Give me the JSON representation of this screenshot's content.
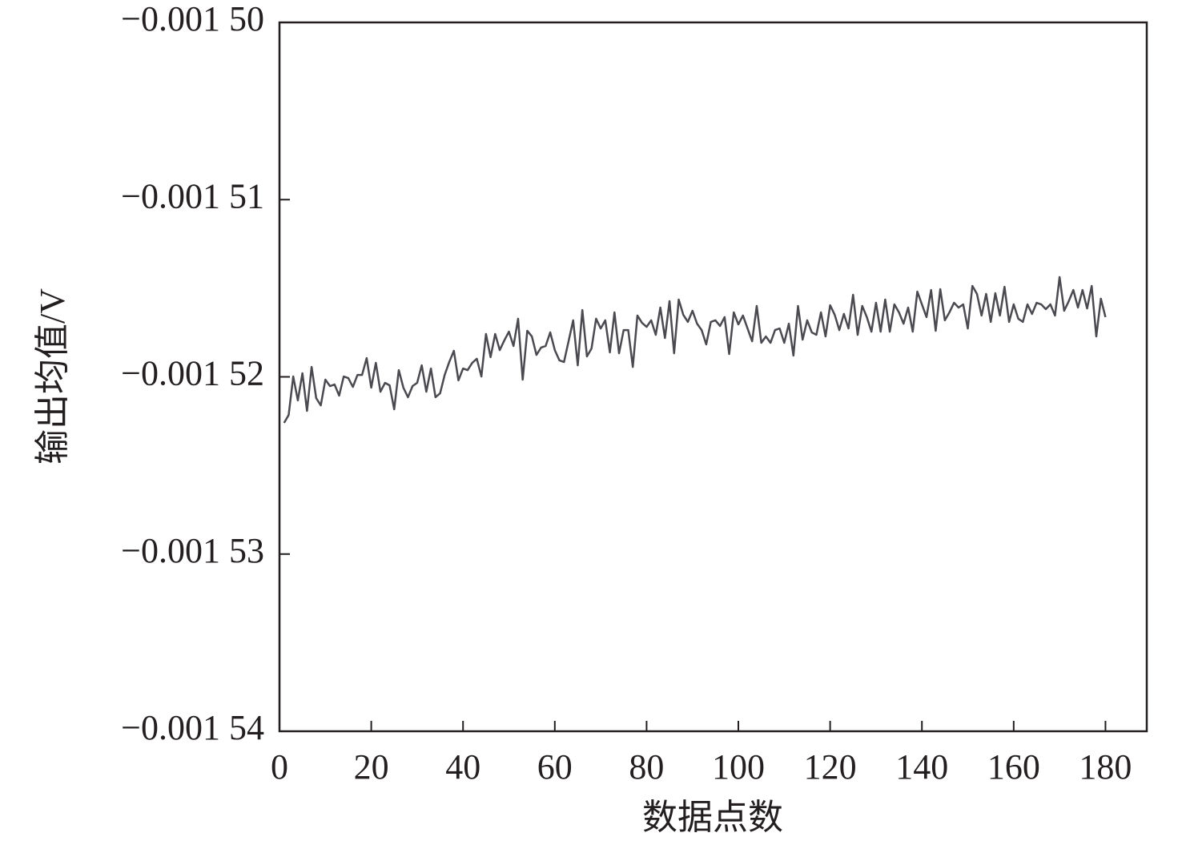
{
  "chart_data": {
    "type": "line",
    "x_label": "数据点数",
    "y_label": "输出均值/V",
    "color": "#4a4a50",
    "xlim": [
      0,
      189
    ],
    "xticks": [
      0,
      20,
      40,
      60,
      80,
      100,
      120,
      140,
      160,
      180
    ],
    "ylim": [
      -0.00154,
      -0.0015
    ],
    "yticks": [
      {
        "value": -0.0015,
        "label": "−0.001 50"
      },
      {
        "value": -0.00151,
        "label": "−0.001 51"
      },
      {
        "value": -0.00152,
        "label": "−0.001 52"
      },
      {
        "value": -0.00153,
        "label": "−0.001 53"
      },
      {
        "value": -0.00154,
        "label": "−0.001 54"
      }
    ],
    "x": [
      1,
      2,
      3,
      4,
      5,
      6,
      7,
      8,
      9,
      10,
      11,
      12,
      13,
      14,
      15,
      16,
      17,
      18,
      19,
      20,
      21,
      22,
      23,
      24,
      25,
      26,
      27,
      28,
      29,
      30,
      31,
      32,
      33,
      34,
      35,
      36,
      37,
      38,
      39,
      40,
      41,
      42,
      43,
      44,
      45,
      46,
      47,
      48,
      49,
      50,
      51,
      52,
      53,
      54,
      55,
      56,
      57,
      58,
      59,
      60,
      61,
      62,
      63,
      64,
      65,
      66,
      67,
      68,
      69,
      70,
      71,
      72,
      73,
      74,
      75,
      76,
      77,
      78,
      79,
      80,
      81,
      82,
      83,
      84,
      85,
      86,
      87,
      88,
      89,
      90,
      91,
      92,
      93,
      94,
      95,
      96,
      97,
      98,
      99,
      100,
      101,
      102,
      103,
      104,
      105,
      106,
      107,
      108,
      109,
      110,
      111,
      112,
      113,
      114,
      115,
      116,
      117,
      118,
      119,
      120,
      121,
      122,
      123,
      124,
      125,
      126,
      127,
      128,
      129,
      130,
      131,
      132,
      133,
      134,
      135,
      136,
      137,
      138,
      139,
      140,
      141,
      142,
      143,
      144,
      145,
      146,
      147,
      148,
      149,
      150,
      151,
      152,
      153,
      154,
      155,
      156,
      157,
      158,
      159,
      160,
      161,
      162,
      163,
      164,
      165,
      166,
      167,
      168,
      169,
      170,
      171,
      172,
      173,
      174,
      175,
      176,
      177,
      178,
      179,
      180
    ],
    "values": [
      -0.0015226,
      -0.00152215,
      -0.00151998,
      -0.00152133,
      -0.0015198,
      -0.00152192,
      -0.00151944,
      -0.0015212,
      -0.00152161,
      -0.00152016,
      -0.00152052,
      -0.00152043,
      -0.00152106,
      -0.00151998,
      -0.00152007,
      -0.00152057,
      -0.00151989,
      -0.00151989,
      -0.00151894,
      -0.00152061,
      -0.00151921,
      -0.00152084,
      -0.00152034,
      -0.00152048,
      -0.00152183,
      -0.00151962,
      -0.00152061,
      -0.00152115,
      -0.00152052,
      -0.00152034,
      -0.00151935,
      -0.00152084,
      -0.00151953,
      -0.00152115,
      -0.00152093,
      -0.00151989,
      -0.00151916,
      -0.00151853,
      -0.0015202,
      -0.00151953,
      -0.00151962,
      -0.00151921,
      -0.00151898,
      -0.00151998,
      -0.00151758,
      -0.00151889,
      -0.00151758,
      -0.00151849,
      -0.00151794,
      -0.00151745,
      -0.00151826,
      -0.00151672,
      -0.00152016,
      -0.0015174,
      -0.00151772,
      -0.00151876,
      -0.00151835,
      -0.00151826,
      -0.00151749,
      -0.00151849,
      -0.00151907,
      -0.00151916,
      -0.00151799,
      -0.00151681,
      -0.00151935,
      -0.00151623,
      -0.00151885,
      -0.0015184,
      -0.00151672,
      -0.00151727,
      -0.00151681,
      -0.00151862,
      -0.00151636,
      -0.00151867,
      -0.00151736,
      -0.00151736,
      -0.00151944,
      -0.00151654,
      -0.00151695,
      -0.00151718,
      -0.00151681,
      -0.00151763,
      -0.00151609,
      -0.00151781,
      -0.00151573,
      -0.00151867,
      -0.00151564,
      -0.0015165,
      -0.0015169,
      -0.00151627,
      -0.001517,
      -0.00151736,
      -0.00151817,
      -0.0015169,
      -0.00151681,
      -0.00151713,
      -0.00151663,
      -0.00151871,
      -0.00151636,
      -0.00151704,
      -0.00151654,
      -0.00151727,
      -0.00151799,
      -0.001516,
      -0.00151808,
      -0.00151772,
      -0.00151808,
      -0.00151736,
      -0.00151727,
      -0.00151808,
      -0.001517,
      -0.0015188,
      -0.001516,
      -0.0015179,
      -0.00151681,
      -0.00151749,
      -0.00151763,
      -0.00151636,
      -0.00151772,
      -0.00151596,
      -0.0015165,
      -0.00151736,
      -0.00151645,
      -0.00151727,
      -0.00151537,
      -0.00151763,
      -0.001516,
      -0.00151663,
      -0.00151745,
      -0.00151582,
      -0.00151745,
      -0.00151564,
      -0.00151745,
      -0.00151591,
      -0.00151636,
      -0.001517,
      -0.00151609,
      -0.00151745,
      -0.00151519,
      -0.00151591,
      -0.00151663,
      -0.0015151,
      -0.0015174,
      -0.00151505,
      -0.00151681,
      -0.00151636,
      -0.00151582,
      -0.00151609,
      -0.00151591,
      -0.00151727,
      -0.00151487,
      -0.00151532,
      -0.00151654,
      -0.00151532,
      -0.0015169,
      -0.00151528,
      -0.00151654,
      -0.00151492,
      -0.0015169,
      -0.00151591,
      -0.00151672,
      -0.0015169,
      -0.00151591,
      -0.00151645,
      -0.00151582,
      -0.00151591,
      -0.00151618,
      -0.00151591,
      -0.00151654,
      -0.00151437,
      -0.00151627,
      -0.00151573,
      -0.0015151,
      -0.00151609,
      -0.0015151,
      -0.00151614,
      -0.00151487,
      -0.00151772,
      -0.00151559,
      -0.00151663
    ]
  }
}
